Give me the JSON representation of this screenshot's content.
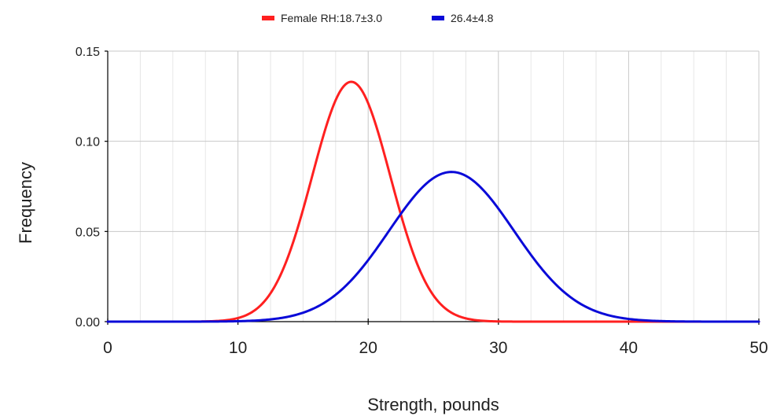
{
  "chart_data": {
    "type": "line",
    "title": "",
    "xlabel": "Strength, pounds",
    "ylabel": "Frequency",
    "xlim": [
      0,
      50
    ],
    "ylim": [
      0,
      0.15
    ],
    "x_ticks": [
      0,
      10,
      20,
      30,
      40,
      50
    ],
    "x_tick_labels": [
      "0",
      "10",
      "20",
      "30",
      "40",
      "50"
    ],
    "x_minor_step": 2.5,
    "y_ticks": [
      0,
      0.05,
      0.1,
      0.15
    ],
    "y_tick_labels": [
      "0.00",
      "0.05",
      "0.10",
      "0.15"
    ],
    "grid": true,
    "legend_position": "top-center",
    "series": [
      {
        "name": "Female RH:18.7±3.0",
        "color": "#ff2020",
        "distribution": "normal",
        "mean": 18.7,
        "sd": 3.0,
        "peak_value": 0.133
      },
      {
        "name": "26.4±4.8",
        "color": "#0a0ad8",
        "distribution": "normal",
        "mean": 26.4,
        "sd": 4.8,
        "peak_value": 0.083
      }
    ]
  }
}
